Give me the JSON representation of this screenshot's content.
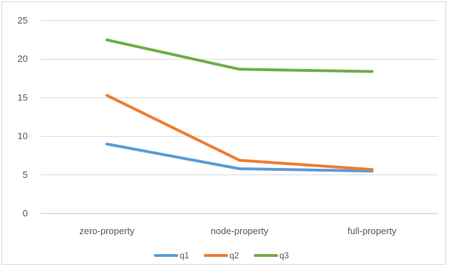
{
  "chart_data": {
    "type": "line",
    "title": "",
    "xlabel": "",
    "ylabel": "",
    "categories": [
      "zero-property",
      "node-property",
      "full-property"
    ],
    "ylim": [
      0,
      25
    ],
    "yticks": [
      "0",
      "5",
      "10",
      "15",
      "20",
      "25"
    ],
    "grid": true,
    "legend_position": "bottom",
    "series": [
      {
        "name": "q1",
        "values": [
          9.0,
          5.8,
          5.5
        ],
        "color": "#5B9BD5"
      },
      {
        "name": "q2",
        "values": [
          15.3,
          6.9,
          5.7
        ],
        "color": "#ED7D31"
      },
      {
        "name": "q3",
        "values": [
          22.5,
          18.7,
          18.4
        ],
        "color": "#70AD47"
      }
    ]
  }
}
